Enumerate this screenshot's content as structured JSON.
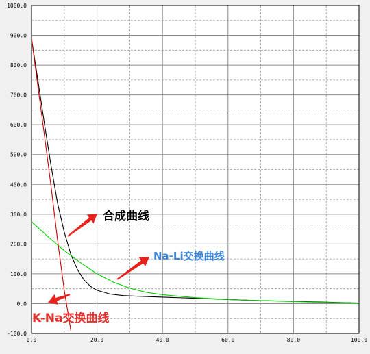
{
  "chart_data": {
    "type": "line",
    "title": "",
    "xlabel": "",
    "ylabel": "",
    "xlim": [
      0,
      100
    ],
    "ylim": [
      -100,
      1000
    ],
    "x_ticks": [
      "0.0",
      "20.0",
      "40.0",
      "60.0",
      "80.0",
      "100.0"
    ],
    "y_ticks": [
      "-100.0",
      "0.0",
      "100.0",
      "200.0",
      "300.0",
      "400.0",
      "500.0",
      "600.0",
      "700.0",
      "800.0",
      "900.0",
      "1000.0"
    ],
    "grid": true,
    "legend": "none",
    "series": [
      {
        "name": "合成曲线",
        "color": "#000000",
        "x": [
          0,
          2,
          4,
          6,
          8,
          10,
          12,
          14,
          16,
          18,
          20,
          24,
          28,
          32,
          40,
          50,
          60,
          70,
          80,
          90,
          100
        ],
        "y": [
          890,
          745,
          600,
          460,
          335,
          240,
          165,
          115,
          80,
          58,
          45,
          32,
          27,
          25,
          22,
          18,
          14,
          10,
          8,
          5,
          2
        ]
      },
      {
        "name": "Na-Li交换曲线",
        "color": "#00cc00",
        "x": [
          0,
          5,
          10,
          15,
          20,
          25,
          30,
          35,
          40,
          50,
          60,
          70,
          80,
          90,
          100
        ],
        "y": [
          275,
          225,
          178,
          137,
          100,
          72,
          52,
          38,
          30,
          20,
          14,
          10,
          7,
          4,
          2
        ]
      },
      {
        "name": "K-Na交换曲线",
        "color": "#cc0000",
        "x": [
          0,
          2,
          4,
          6,
          8,
          10,
          12
        ],
        "y": [
          890,
          725,
          560,
          390,
          210,
          45,
          -90
        ]
      }
    ],
    "annotations": [
      {
        "text": "合成曲线",
        "color": "#000000"
      },
      {
        "text": "Na-Li交换曲线",
        "color": "#3b84d8"
      },
      {
        "text": "K-Na交换曲线",
        "color": "#e5322d"
      }
    ]
  }
}
